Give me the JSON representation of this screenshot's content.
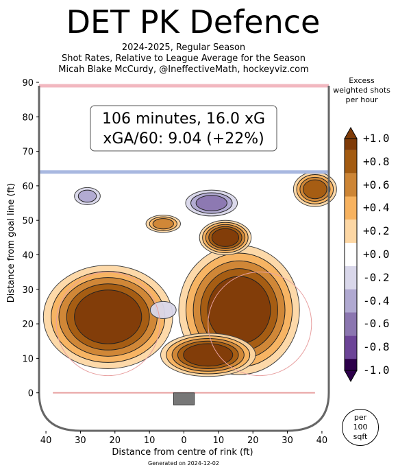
{
  "header": {
    "title": "DET PK Defence",
    "subtitle_lines": [
      "2024-2025, Regular Season",
      "Shot Rates, Relative to League Average for the Season",
      "Micah Blake McCurdy, @IneffectiveMath, hockeyviz.com"
    ]
  },
  "chart_data": {
    "type": "heatmap",
    "title": "DET PK Defence",
    "xlabel": "Distance from centre of rink (ft)",
    "ylabel": "Distance from goal line (ft)",
    "xlim": [
      -42,
      42
    ],
    "ylim": [
      -11,
      90
    ],
    "x_ticks": [
      -40,
      -30,
      -20,
      -10,
      0,
      10,
      20,
      30,
      40
    ],
    "x_tick_labels": [
      "40",
      "30",
      "20",
      "10",
      "0",
      "10",
      "20",
      "30",
      "40"
    ],
    "y_ticks": [
      0,
      10,
      20,
      30,
      40,
      50,
      60,
      70,
      80,
      90
    ],
    "y_tick_labels": [
      "0",
      "10",
      "20",
      "30",
      "40",
      "50",
      "60",
      "70",
      "80",
      "90"
    ],
    "annotation_lines": [
      "106 minutes, 16.0 xG",
      "xGA/60: 9.04 (+22%)"
    ],
    "summary": {
      "minutes": 106,
      "xG": 16.0,
      "xGA_per_60": 9.04,
      "relative_pct": 22
    },
    "colorbar": {
      "title_lines": [
        "Excess",
        "weighted shots",
        "per hour"
      ],
      "levels": [
        "+1.0",
        "+0.8",
        "+0.6",
        "+0.4",
        "+0.2",
        "+0.0",
        "-0.2",
        "-0.4",
        "-0.6",
        "-0.8",
        "-1.0"
      ],
      "colors_high_to_low": [
        "#7f3b08",
        "#a35b11",
        "#cd8535",
        "#f7b25f",
        "#fdd7a4",
        "#ffffff",
        "#d9d7ea",
        "#b0a9d1",
        "#8b76b0",
        "#6c4497",
        "#2d004b"
      ]
    },
    "regions": [
      {
        "name": "left-slot-hotspot",
        "x": -22,
        "y": 22,
        "rx": 15,
        "ry": 12,
        "level": 1.0
      },
      {
        "name": "right-slot-hotspot",
        "x": 16,
        "y": 24,
        "rx": 14,
        "ry": 15,
        "level": 1.0
      },
      {
        "name": "crease-front-hotspot",
        "x": 7,
        "y": 11,
        "rx": 11,
        "ry": 5,
        "level": 0.9
      },
      {
        "name": "high-slot-hotspot",
        "x": 12,
        "y": 45,
        "rx": 6,
        "ry": 4,
        "level": 0.9
      },
      {
        "name": "left-circle-top-hotspot",
        "x": -6,
        "y": 49,
        "rx": 4,
        "ry": 2,
        "level": 0.6
      },
      {
        "name": "right-point-hotspot",
        "x": 38,
        "y": 59,
        "rx": 5,
        "ry": 4,
        "level": 0.8
      },
      {
        "name": "blue-line-cold-zone",
        "x": 8,
        "y": 55,
        "rx": 6,
        "ry": 3,
        "level": -0.6
      },
      {
        "name": "left-point-cold-zone",
        "x": -28,
        "y": 57,
        "rx": 3,
        "ry": 2,
        "level": -0.4
      },
      {
        "name": "low-slot-cold-zone",
        "x": -6,
        "y": 24,
        "rx": 3,
        "ry": 2,
        "level": -0.2
      }
    ]
  },
  "colorbar_title_lines": [
    "Excess",
    "weighted shots",
    "per hour"
  ],
  "per_badge_lines": [
    "per",
    "100",
    "sqft"
  ],
  "generated": "Generated on 2024-12-02"
}
